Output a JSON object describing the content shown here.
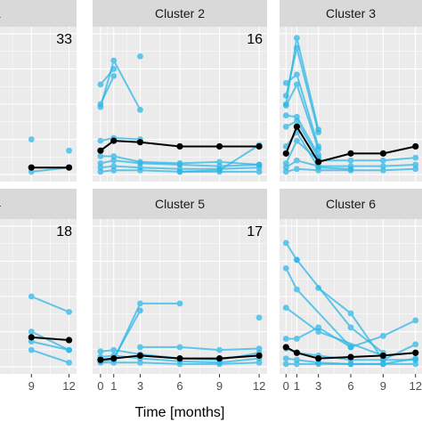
{
  "colors": {
    "panel_bg": "#ebebeb",
    "grid": "#ffffff",
    "strip_bg": "#d9d9d9",
    "individual_line": "#29b6e6",
    "mean_line": "#000000"
  },
  "chart_data": {
    "type": "line",
    "layout": "facets 3 columns x 2 rows (left column cropped)",
    "xlabel": "Time [months]",
    "x_ticks": [
      0,
      1,
      3,
      6,
      9,
      12
    ],
    "xlim": [
      -0.6,
      12.6
    ],
    "grid": true,
    "panels": [
      {
        "strip": "r 1",
        "count": "33",
        "ylim": [
          0,
          1
        ],
        "series": [
          {
            "role": "individual",
            "x": [
              9,
              12
            ],
            "y": [
              0.05,
              0.05
            ]
          },
          {
            "role": "individual",
            "x": [
              9,
              12
            ],
            "y": [
              0.02,
              0.05
            ]
          },
          {
            "role": "individual",
            "x": [
              9
            ],
            "y": [
              0.25
            ]
          },
          {
            "role": "individual",
            "x": [
              12
            ],
            "y": [
              0.17
            ]
          },
          {
            "role": "mean",
            "x": [
              9,
              12
            ],
            "y": [
              0.05,
              0.05
            ]
          }
        ]
      },
      {
        "strip": "Cluster 2",
        "count": "16",
        "ylim": [
          0,
          1
        ],
        "series": [
          {
            "role": "individual",
            "x": [
              0,
              1,
              3
            ],
            "y": [
              0.48,
              0.81,
              0.46
            ]
          },
          {
            "role": "individual",
            "x": [
              0,
              1
            ],
            "y": [
              0.64,
              0.75
            ]
          },
          {
            "role": "individual",
            "x": [
              0,
              1
            ],
            "y": [
              0.5,
              0.7
            ]
          },
          {
            "role": "individual",
            "x": [
              3
            ],
            "y": [
              0.84
            ]
          },
          {
            "role": "individual",
            "x": [
              0,
              1,
              3
            ],
            "y": [
              0.24,
              0.26,
              0.25
            ]
          },
          {
            "role": "individual",
            "x": [
              0,
              1,
              3,
              6,
              9,
              12
            ],
            "y": [
              0.08,
              0.1,
              0.08,
              0.07,
              0.06,
              0.07
            ]
          },
          {
            "role": "individual",
            "x": [
              0,
              1,
              3,
              6,
              9,
              12
            ],
            "y": [
              0.05,
              0.06,
              0.05,
              0.04,
              0.04,
              0.05
            ]
          },
          {
            "role": "individual",
            "x": [
              0,
              1,
              3,
              6,
              9,
              12
            ],
            "y": [
              0.02,
              0.03,
              0.03,
              0.02,
              0.02,
              0.02
            ]
          },
          {
            "role": "individual",
            "x": [
              0,
              1,
              3,
              6,
              9,
              12
            ],
            "y": [
              0.13,
              0.13,
              0.09,
              0.08,
              0.09,
              0.07
            ]
          },
          {
            "role": "individual",
            "x": [
              6,
              9,
              12
            ],
            "y": [
              0.02,
              0.03,
              0.21
            ]
          },
          {
            "role": "mean",
            "x": [
              0,
              1,
              3,
              6,
              9,
              12
            ],
            "y": [
              0.17,
              0.24,
              0.23,
              0.2,
              0.2,
              0.2
            ]
          }
        ]
      },
      {
        "strip": "Cluster 3",
        "count": "",
        "ylim": [
          0,
          1
        ],
        "series": [
          {
            "role": "individual",
            "x": [
              0,
              1,
              3
            ],
            "y": [
              0.5,
              0.97,
              0.32
            ]
          },
          {
            "role": "individual",
            "x": [
              0,
              1,
              3
            ],
            "y": [
              0.56,
              0.9,
              0.3
            ]
          },
          {
            "role": "individual",
            "x": [
              0,
              1,
              3
            ],
            "y": [
              0.65,
              0.71,
              0.2
            ]
          },
          {
            "role": "individual",
            "x": [
              0,
              1,
              3
            ],
            "y": [
              0.49,
              0.64,
              0.18
            ]
          },
          {
            "role": "individual",
            "x": [
              0,
              1,
              3
            ],
            "y": [
              0.42,
              0.41,
              0.14
            ]
          },
          {
            "role": "individual",
            "x": [
              0,
              1,
              3
            ],
            "y": [
              0.34,
              0.38,
              0.12
            ]
          },
          {
            "role": "individual",
            "x": [
              0,
              1,
              3,
              6,
              9,
              12
            ],
            "y": [
              0.08,
              0.24,
              0.1,
              0.1,
              0.1,
              0.12
            ]
          },
          {
            "role": "individual",
            "x": [
              0,
              1,
              3,
              6,
              9,
              12
            ],
            "y": [
              0.05,
              0.1,
              0.06,
              0.06,
              0.06,
              0.07
            ]
          },
          {
            "role": "individual",
            "x": [
              0,
              1,
              3,
              6,
              9,
              12
            ],
            "y": [
              0.02,
              0.04,
              0.03,
              0.03,
              0.03,
              0.04
            ]
          },
          {
            "role": "individual",
            "x": [
              0,
              1,
              3,
              6
            ],
            "y": [
              0.2,
              0.3,
              0.05,
              0.04
            ]
          },
          {
            "role": "mean",
            "x": [
              0,
              1,
              3,
              6,
              9,
              12
            ],
            "y": [
              0.15,
              0.34,
              0.09,
              0.15,
              0.15,
              0.2
            ]
          }
        ]
      },
      {
        "strip": "r 4",
        "count": "18",
        "ylim": [
          0,
          1
        ],
        "series": [
          {
            "role": "individual",
            "x": [
              9,
              12
            ],
            "y": [
              0.5,
              0.39
            ]
          },
          {
            "role": "individual",
            "x": [
              9,
              12
            ],
            "y": [
              0.18,
              0.12
            ]
          },
          {
            "role": "individual",
            "x": [
              9,
              12
            ],
            "y": [
              0.12,
              0.03
            ]
          },
          {
            "role": "individual",
            "x": [
              9,
              12
            ],
            "y": [
              0.25,
              0.12
            ]
          },
          {
            "role": "mean",
            "x": [
              9,
              12
            ],
            "y": [
              0.21,
              0.19
            ]
          }
        ]
      },
      {
        "strip": "Cluster 5",
        "count": "17",
        "ylim": [
          0,
          1
        ],
        "series": [
          {
            "role": "individual",
            "x": [
              0,
              1,
              3,
              6
            ],
            "y": [
              0.04,
              0.05,
              0.45,
              0.45
            ]
          },
          {
            "role": "individual",
            "x": [
              0,
              1,
              3
            ],
            "y": [
              0.05,
              0.06,
              0.4
            ]
          },
          {
            "role": "individual",
            "x": [
              3,
              6,
              9,
              12
            ],
            "y": [
              0.14,
              0.14,
              0.12,
              0.13
            ]
          },
          {
            "role": "individual",
            "x": [
              0,
              1,
              3,
              6,
              9,
              12
            ],
            "y": [
              0.11,
              0.12,
              0.09,
              0.06,
              0.05,
              0.1
            ]
          },
          {
            "role": "individual",
            "x": [
              0,
              1,
              3,
              6,
              9,
              12
            ],
            "y": [
              0.07,
              0.08,
              0.06,
              0.04,
              0.03,
              0.06
            ]
          },
          {
            "role": "individual",
            "x": [
              0,
              1,
              3,
              6,
              9,
              12
            ],
            "y": [
              0.03,
              0.03,
              0.03,
              0.02,
              0.02,
              0.03
            ]
          },
          {
            "role": "individual",
            "x": [
              12
            ],
            "y": [
              0.35
            ]
          },
          {
            "role": "mean",
            "x": [
              0,
              1,
              3,
              6,
              9,
              12
            ],
            "y": [
              0.05,
              0.06,
              0.08,
              0.06,
              0.06,
              0.08
            ]
          }
        ]
      },
      {
        "strip": "Cluster 6",
        "count": "",
        "ylim": [
          0,
          1
        ],
        "series": [
          {
            "role": "individual",
            "x": [
              0,
              1
            ],
            "y": [
              0.88,
              0.76
            ]
          },
          {
            "role": "individual",
            "x": [
              1,
              6,
              9
            ],
            "y": [
              0.76,
              0.28,
              0.1
            ]
          },
          {
            "role": "individual",
            "x": [
              0,
              1,
              6
            ],
            "y": [
              0.7,
              0.55,
              0.14
            ]
          },
          {
            "role": "individual",
            "x": [
              0,
              3,
              9
            ],
            "y": [
              0.42,
              0.25,
              0.08
            ]
          },
          {
            "role": "individual",
            "x": [
              3,
              6,
              9,
              12
            ],
            "y": [
              0.56,
              0.38,
              0.05,
              0.05
            ]
          },
          {
            "role": "individual",
            "x": [
              0,
              1,
              3,
              6,
              9,
              12
            ],
            "y": [
              0.2,
              0.2,
              0.28,
              0.14,
              0.22,
              0.33
            ]
          },
          {
            "role": "individual",
            "x": [
              0,
              1,
              3,
              6,
              9,
              12
            ],
            "y": [
              0.13,
              0.1,
              0.08,
              0.05,
              0.05,
              0.16
            ]
          },
          {
            "role": "individual",
            "x": [
              0,
              1,
              3,
              6,
              9,
              12
            ],
            "y": [
              0.06,
              0.05,
              0.03,
              0.02,
              0.02,
              0.06
            ]
          },
          {
            "role": "individual",
            "x": [
              0,
              1,
              3,
              6,
              9,
              12
            ],
            "y": [
              0.02,
              0.02,
              0.02,
              0.02,
              0.02,
              0.02
            ]
          },
          {
            "role": "mean",
            "x": [
              0,
              1,
              3,
              6,
              9,
              12
            ],
            "y": [
              0.14,
              0.1,
              0.06,
              0.07,
              0.08,
              0.1
            ]
          }
        ]
      }
    ]
  }
}
